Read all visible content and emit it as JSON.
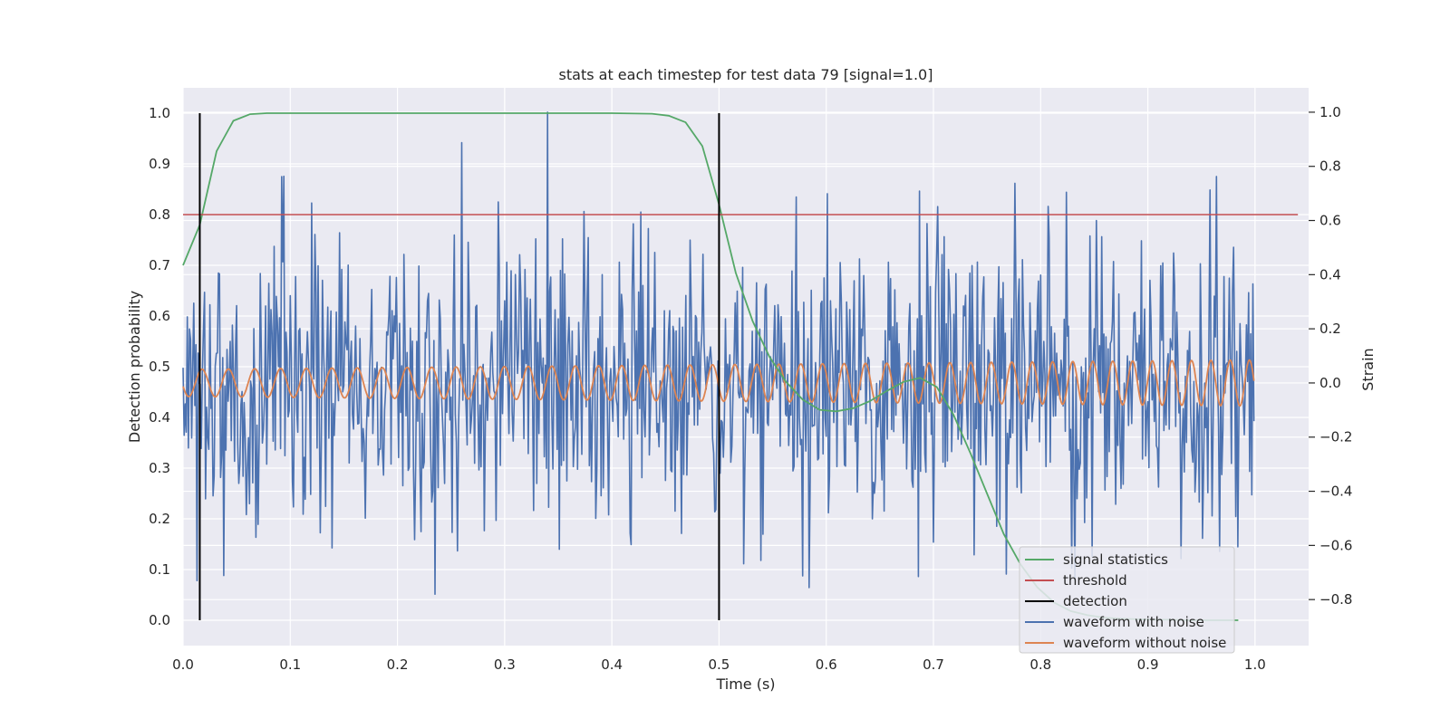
{
  "chart_data": {
    "type": "line",
    "title": "stats at each timestep for test data 79 [signal=1.0]",
    "xlabel": "Time (s)",
    "ylabel_left": "Detection probability",
    "ylabel_right": "Strain",
    "xlim": [
      0.0,
      1.05
    ],
    "ylim_left": [
      -0.05,
      1.05
    ],
    "ylim_right": [
      -0.97,
      1.09
    ],
    "xticks": [
      0.0,
      0.1,
      0.2,
      0.3,
      0.4,
      0.5,
      0.6,
      0.7,
      0.8,
      0.9,
      1.0
    ],
    "xtick_labels": [
      "0.0",
      "0.1",
      "0.2",
      "0.3",
      "0.4",
      "0.5",
      "0.6",
      "0.7",
      "0.8",
      "0.9",
      "1.0"
    ],
    "yticks_left": [
      0.0,
      0.1,
      0.2,
      0.3,
      0.4,
      0.5,
      0.6,
      0.7,
      0.8,
      0.9,
      1.0
    ],
    "ytick_labels_left": [
      "0.0",
      "0.1",
      "0.2",
      "0.3",
      "0.4",
      "0.5",
      "0.6",
      "0.7",
      "0.8",
      "0.9",
      "1.0"
    ],
    "yticks_right": [
      -0.8,
      -0.6,
      -0.4,
      -0.2,
      0.0,
      0.2,
      0.4,
      0.6,
      0.8,
      1.0
    ],
    "ytick_labels_right": [
      "−0.8",
      "−0.6",
      "−0.4",
      "−0.2",
      "0.0",
      "0.2",
      "0.4",
      "0.6",
      "0.8",
      "1.0"
    ],
    "grid": true,
    "legend_position": "bottom-right",
    "legend": [
      {
        "label": "signal statistics",
        "color": "#55a868"
      },
      {
        "label": "threshold",
        "color": "#c44e52"
      },
      {
        "label": "detection",
        "color": "#000000"
      },
      {
        "label": "waveform with noise",
        "color": "#4c72b0"
      },
      {
        "label": "waveform without noise",
        "color": "#dd8452"
      }
    ],
    "series": [
      {
        "name": "signal statistics",
        "axis": "left",
        "color": "#55a868",
        "x": [
          0.0,
          0.0156,
          0.0313,
          0.0469,
          0.0625,
          0.0781,
          0.1,
          0.2,
          0.3,
          0.4,
          0.4375,
          0.4531,
          0.4688,
          0.4844,
          0.5,
          0.5156,
          0.5313,
          0.5469,
          0.5625,
          0.5781,
          0.5938,
          0.6094,
          0.625,
          0.6406,
          0.6563,
          0.6719,
          0.6875,
          0.7031,
          0.7188,
          0.7344,
          0.75,
          0.7656,
          0.7813,
          0.7969,
          0.8125,
          0.8281,
          0.8438,
          0.8594,
          0.875,
          0.8906,
          0.9063,
          0.9219,
          0.9375,
          0.9531,
          0.9688,
          0.9844
        ],
        "y": [
          0.7,
          0.78,
          0.925,
          0.985,
          0.998,
          1.0,
          1.0,
          1.0,
          1.0,
          1.0,
          0.999,
          0.995,
          0.982,
          0.935,
          0.82,
          0.685,
          0.59,
          0.52,
          0.47,
          0.435,
          0.415,
          0.412,
          0.418,
          0.432,
          0.452,
          0.47,
          0.478,
          0.46,
          0.405,
          0.33,
          0.25,
          0.17,
          0.11,
          0.065,
          0.035,
          0.018,
          0.01,
          0.005,
          0.003,
          0.002,
          0.001,
          0.001,
          0.0,
          0.0,
          0.0,
          0.0
        ]
      },
      {
        "name": "threshold",
        "axis": "left",
        "color": "#c44e52",
        "x": [
          0.0,
          1.04
        ],
        "y": [
          0.8,
          0.8
        ]
      },
      {
        "name": "detection",
        "axis": "left",
        "color": "#000000",
        "segments": [
          {
            "x": 0.0156,
            "y0": 0.0,
            "y1": 1.0
          },
          {
            "x": 0.5,
            "y0": 0.0,
            "y1": 1.0
          }
        ]
      },
      {
        "name": "waveform with noise",
        "axis": "right",
        "color": "#4c72b0",
        "samples": 1000,
        "x_start": 0.0,
        "x_end": 0.999,
        "y_range": [
          -0.83,
          1.0
        ],
        "notes_peaks": [
          [
            0.34,
            1.0
          ],
          [
            0.235,
            -0.78
          ],
          [
            0.013,
            -0.73
          ]
        ]
      },
      {
        "name": "waveform without noise",
        "axis": "right",
        "color": "#dd8452",
        "x_start": 0.0,
        "x_end": 0.999,
        "frequency_hz_start": 40,
        "frequency_hz_end": 48,
        "amplitude_start": 0.05,
        "amplitude_end": 0.085
      }
    ]
  }
}
